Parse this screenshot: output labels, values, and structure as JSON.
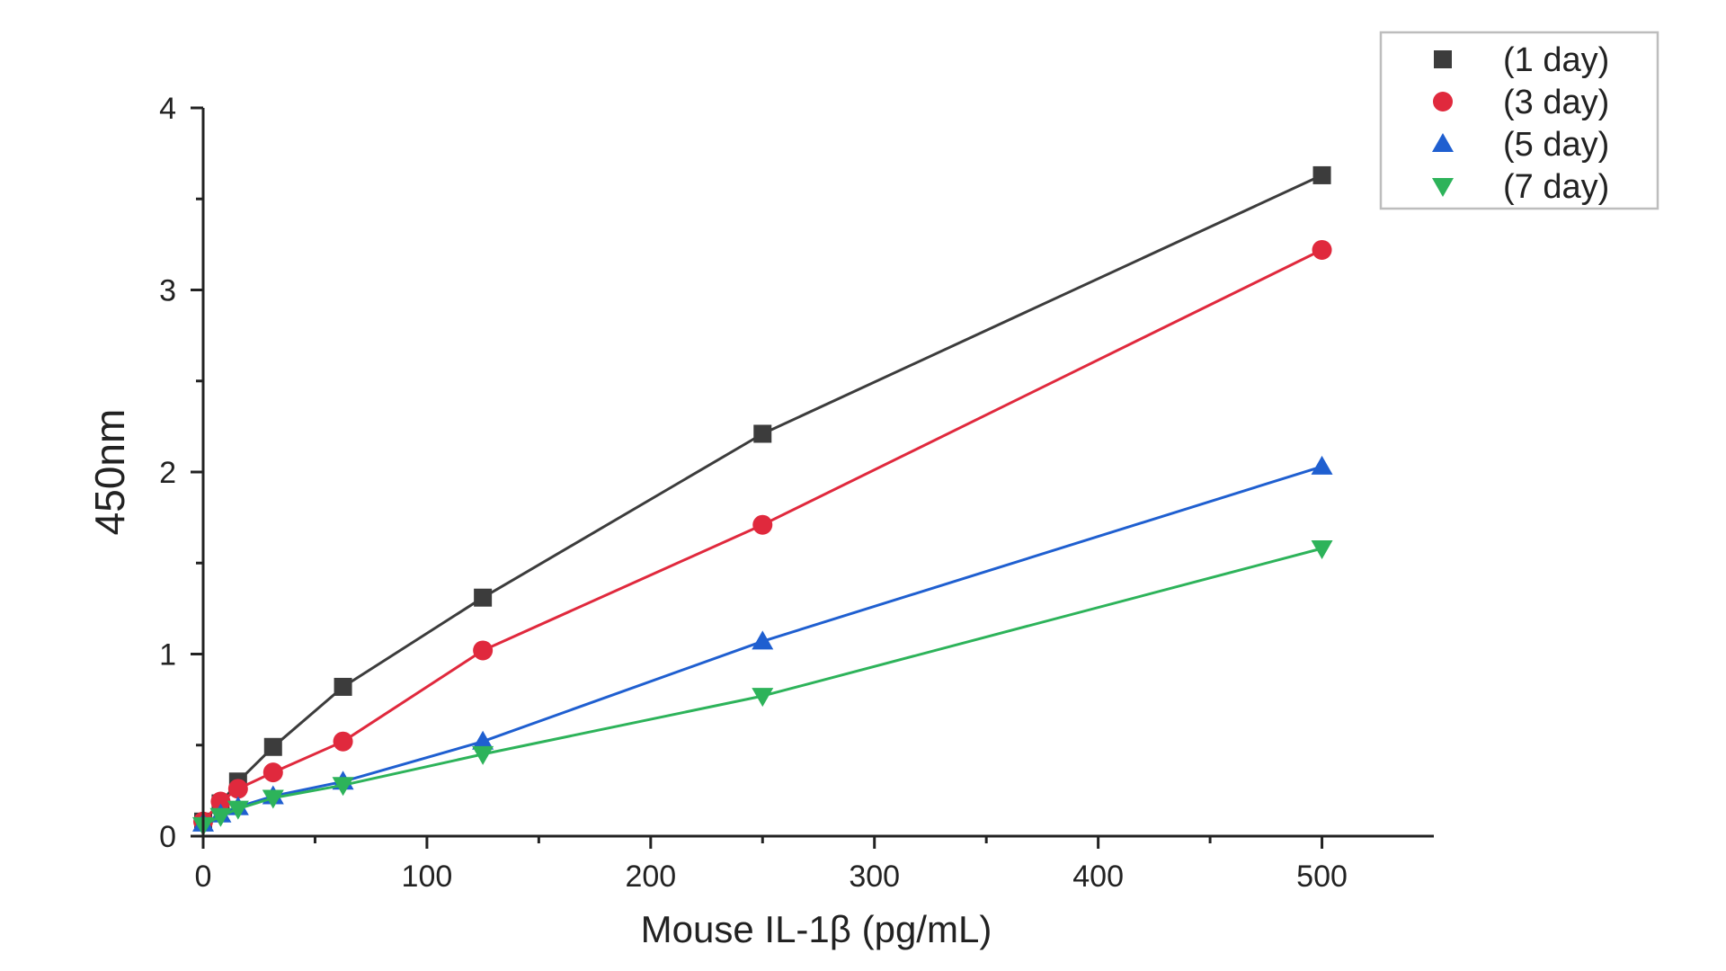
{
  "chart_data": {
    "type": "line",
    "title": "",
    "xlabel": "Mouse IL-1β (pg/mL)",
    "ylabel": "450nm",
    "xlim": [
      0,
      550
    ],
    "ylim": [
      0,
      4
    ],
    "x_ticks": [
      0,
      100,
      200,
      300,
      400,
      500
    ],
    "y_ticks": [
      0,
      1,
      2,
      3,
      4
    ],
    "grid": false,
    "legend_position": "top-right",
    "x": [
      0,
      7.8,
      15.6,
      31.25,
      62.5,
      125,
      250,
      500
    ],
    "series": [
      {
        "name": "(1 day)",
        "color": "#3c3c3c",
        "marker": "square",
        "values": [
          0.08,
          0.18,
          0.3,
          0.49,
          0.82,
          1.31,
          2.21,
          3.63
        ]
      },
      {
        "name": "(3 day)",
        "color": "#e0293d",
        "marker": "circle",
        "values": [
          0.08,
          0.19,
          0.26,
          0.35,
          0.52,
          1.02,
          1.71,
          3.22
        ]
      },
      {
        "name": "(5 day)",
        "color": "#1f5fd0",
        "marker": "triangle-up",
        "values": [
          0.07,
          0.12,
          0.16,
          0.22,
          0.3,
          0.52,
          1.07,
          2.03
        ]
      },
      {
        "name": "(7 day)",
        "color": "#2db35a",
        "marker": "triangle-down",
        "values": [
          0.06,
          0.11,
          0.15,
          0.21,
          0.28,
          0.45,
          0.77,
          1.58
        ]
      }
    ]
  }
}
